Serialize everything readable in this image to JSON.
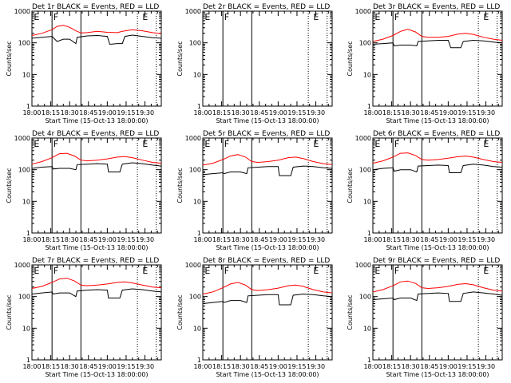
{
  "figure": {
    "common_xlabel": "Start Time (15-Oct-13 18:00:00)",
    "common_ylabel": "Counts/sec",
    "x_tick_labels": [
      "18:00",
      "18:15",
      "18:30",
      "18:45",
      "19:00",
      "19:15",
      "19:30"
    ],
    "y_tick_labels": [
      "1",
      "10",
      "100",
      "1000"
    ],
    "colors": {
      "events": "#000000",
      "lld": "#ff0000",
      "background": "#ffffff"
    }
  },
  "chart_data": [
    {
      "type": "line",
      "title": "Det 1r BLACK = Events, RED = LLD",
      "xlabel": "Start Time (15-Oct-13 18:00:00)",
      "ylabel": "Counts/sec",
      "x_unit": "minutes after 18:00:00",
      "xlim": [
        0,
        103
      ],
      "ylim": [
        1,
        1000
      ],
      "log_y": true,
      "markers": [
        {
          "label": "E",
          "x": 1.5
        },
        {
          "label": "F",
          "x": 17
        },
        {
          "label": "E",
          "x": 88
        }
      ],
      "vlines_solid": [
        16,
        39
      ],
      "vlines_dotted": [
        84,
        99
      ],
      "series": [
        {
          "name": "Events",
          "color": "#000000",
          "x": [
            0,
            8,
            16,
            20,
            25,
            30,
            35,
            36,
            44,
            52,
            60,
            62,
            68,
            72,
            74,
            80,
            88,
            96,
            103
          ],
          "y": [
            140,
            150,
            160,
            110,
            130,
            130,
            95,
            150,
            165,
            170,
            160,
            90,
            95,
            95,
            160,
            175,
            160,
            145,
            140
          ]
        },
        {
          "name": "LLD",
          "color": "#ff0000",
          "x": [
            0,
            8,
            16,
            20,
            25,
            30,
            35,
            39,
            44,
            52,
            60,
            68,
            72,
            80,
            88,
            96,
            103
          ],
          "y": [
            170,
            200,
            260,
            330,
            360,
            310,
            240,
            205,
            210,
            230,
            215,
            210,
            230,
            260,
            240,
            210,
            195
          ]
        }
      ]
    },
    {
      "type": "line",
      "title": "Det 2r BLACK = Events, RED = LLD",
      "xlabel": "Start Time (15-Oct-13 18:00:00)",
      "ylabel": "Counts/sec",
      "x_unit": "minutes after 18:00:00",
      "xlim": [
        0,
        103
      ],
      "ylim": [
        1,
        1000
      ],
      "log_y": true,
      "markers": [
        {
          "label": "E",
          "x": 1.5
        },
        {
          "label": "F",
          "x": 17
        },
        {
          "label": "E",
          "x": 88
        }
      ],
      "vlines_solid": [
        16,
        39
      ],
      "vlines_dotted": [
        84,
        99
      ],
      "series": []
    },
    {
      "type": "line",
      "title": "Det 3r BLACK = Events, RED = LLD",
      "xlabel": "Start Time (15-Oct-13 18:00:00)",
      "ylabel": "Counts/sec",
      "x_unit": "minutes after 18:00:00",
      "xlim": [
        0,
        103
      ],
      "ylim": [
        1,
        1000
      ],
      "log_y": true,
      "markers": [
        {
          "label": "E",
          "x": 1.5
        },
        {
          "label": "F",
          "x": 17
        },
        {
          "label": "E",
          "x": 88
        }
      ],
      "vlines_solid": [
        16,
        39
      ],
      "vlines_dotted": [
        84,
        99
      ],
      "series": [
        {
          "name": "Events",
          "color": "#000000",
          "x": [
            0,
            8,
            16,
            17,
            22,
            30,
            35,
            36,
            44,
            52,
            60,
            62,
            70,
            72,
            80,
            88,
            96,
            103
          ],
          "y": [
            90,
            95,
            100,
            80,
            85,
            85,
            80,
            110,
            115,
            120,
            120,
            70,
            70,
            110,
            120,
            115,
            105,
            100
          ]
        },
        {
          "name": "LLD",
          "color": "#ff0000",
          "x": [
            0,
            8,
            16,
            22,
            28,
            34,
            39,
            44,
            52,
            60,
            68,
            74,
            80,
            88,
            96,
            103
          ],
          "y": [
            110,
            130,
            170,
            230,
            270,
            220,
            160,
            150,
            150,
            160,
            190,
            200,
            185,
            150,
            130,
            120
          ]
        }
      ]
    },
    {
      "type": "line",
      "title": "Det 4r BLACK = Events, RED = LLD",
      "xlabel": "Start Time (15-Oct-13 18:00:00)",
      "ylabel": "Counts/sec",
      "x_unit": "minutes after 18:00:00",
      "xlim": [
        0,
        103
      ],
      "ylim": [
        1,
        1000
      ],
      "log_y": true,
      "markers": [
        {
          "label": "E",
          "x": 1.5
        },
        {
          "label": "F",
          "x": 17
        },
        {
          "label": "E",
          "x": 88
        }
      ],
      "vlines_solid": [
        16,
        39
      ],
      "vlines_dotted": [
        84,
        99
      ],
      "series": [
        {
          "name": "Events",
          "color": "#000000",
          "x": [
            0,
            8,
            16,
            17,
            22,
            30,
            35,
            36,
            44,
            52,
            60,
            61,
            70,
            72,
            80,
            88,
            96,
            103
          ],
          "y": [
            110,
            120,
            125,
            105,
            110,
            110,
            100,
            145,
            150,
            155,
            150,
            85,
            85,
            150,
            165,
            155,
            140,
            130
          ]
        },
        {
          "name": "LLD",
          "color": "#ff0000",
          "x": [
            0,
            8,
            16,
            22,
            28,
            34,
            39,
            44,
            52,
            60,
            68,
            74,
            80,
            88,
            96,
            103
          ],
          "y": [
            150,
            180,
            240,
            320,
            330,
            270,
            200,
            190,
            200,
            220,
            250,
            260,
            240,
            200,
            170,
            160
          ]
        }
      ]
    },
    {
      "type": "line",
      "title": "Det 5r BLACK = Events, RED = LLD",
      "xlabel": "Start Time (15-Oct-13 18:00:00)",
      "ylabel": "Counts/sec",
      "x_unit": "minutes after 18:00:00",
      "xlim": [
        0,
        103
      ],
      "ylim": [
        1,
        1000
      ],
      "log_y": true,
      "markers": [
        {
          "label": "E",
          "x": 1.5
        },
        {
          "label": "F",
          "x": 17
        },
        {
          "label": "E",
          "x": 88
        }
      ],
      "vlines_solid": [
        16,
        39
      ],
      "vlines_dotted": [
        84,
        99
      ],
      "series": [
        {
          "name": "Events",
          "color": "#000000",
          "x": [
            0,
            8,
            16,
            17,
            22,
            30,
            35,
            36,
            44,
            52,
            60,
            61,
            70,
            72,
            80,
            88,
            96,
            103
          ],
          "y": [
            70,
            75,
            80,
            75,
            85,
            85,
            75,
            115,
            120,
            125,
            125,
            65,
            65,
            120,
            130,
            125,
            115,
            110
          ]
        },
        {
          "name": "LLD",
          "color": "#ff0000",
          "x": [
            0,
            8,
            16,
            22,
            28,
            34,
            39,
            44,
            52,
            60,
            68,
            74,
            80,
            88,
            96,
            103
          ],
          "y": [
            140,
            160,
            210,
            270,
            300,
            250,
            180,
            170,
            180,
            200,
            240,
            250,
            225,
            180,
            155,
            145
          ]
        }
      ]
    },
    {
      "type": "line",
      "title": "Det 6r BLACK = Events, RED = LLD",
      "xlabel": "Start Time (15-Oct-13 18:00:00)",
      "ylabel": "Counts/sec",
      "x_unit": "minutes after 18:00:00",
      "xlim": [
        0,
        103
      ],
      "ylim": [
        1,
        1000
      ],
      "log_y": true,
      "markers": [
        {
          "label": "E",
          "x": 1.5
        },
        {
          "label": "F",
          "x": 17
        },
        {
          "label": "E",
          "x": 88
        }
      ],
      "vlines_solid": [
        16,
        39
      ],
      "vlines_dotted": [
        84,
        99
      ],
      "series": [
        {
          "name": "Events",
          "color": "#000000",
          "x": [
            0,
            8,
            16,
            17,
            22,
            30,
            35,
            36,
            44,
            52,
            60,
            61,
            70,
            72,
            80,
            88,
            96,
            103
          ],
          "y": [
            100,
            110,
            115,
            90,
            100,
            100,
            85,
            130,
            135,
            140,
            135,
            80,
            80,
            135,
            150,
            140,
            125,
            120
          ]
        },
        {
          "name": "LLD",
          "color": "#ff0000",
          "x": [
            0,
            8,
            16,
            22,
            28,
            34,
            39,
            44,
            52,
            60,
            68,
            74,
            80,
            88,
            96,
            103
          ],
          "y": [
            160,
            190,
            250,
            330,
            340,
            280,
            210,
            200,
            210,
            230,
            260,
            270,
            250,
            210,
            180,
            170
          ]
        }
      ]
    },
    {
      "type": "line",
      "title": "Det 7r BLACK = Events, RED = LLD",
      "xlabel": "Start Time (15-Oct-13 18:00:00)",
      "ylabel": "Counts/sec",
      "x_unit": "minutes after 18:00:00",
      "xlim": [
        0,
        103
      ],
      "ylim": [
        1,
        1000
      ],
      "log_y": true,
      "markers": [
        {
          "label": "E",
          "x": 1.5
        },
        {
          "label": "F",
          "x": 17
        },
        {
          "label": "E",
          "x": 88
        }
      ],
      "vlines_solid": [
        16,
        39
      ],
      "vlines_dotted": [
        84,
        99
      ],
      "series": [
        {
          "name": "Events",
          "color": "#000000",
          "x": [
            0,
            8,
            16,
            17,
            22,
            30,
            35,
            36,
            44,
            52,
            60,
            61,
            70,
            72,
            80,
            88,
            96,
            103
          ],
          "y": [
            120,
            130,
            140,
            120,
            130,
            130,
            100,
            150,
            160,
            165,
            160,
            90,
            90,
            160,
            175,
            165,
            150,
            140
          ]
        },
        {
          "name": "LLD",
          "color": "#ff0000",
          "x": [
            0,
            8,
            16,
            22,
            28,
            34,
            39,
            44,
            52,
            60,
            68,
            74,
            80,
            88,
            96,
            103
          ],
          "y": [
            180,
            210,
            280,
            360,
            380,
            310,
            230,
            220,
            230,
            250,
            280,
            290,
            270,
            230,
            200,
            190
          ]
        }
      ]
    },
    {
      "type": "line",
      "title": "Det 8r BLACK = Events, RED = LLD",
      "xlabel": "Start Time (15-Oct-13 18:00:00)",
      "ylabel": "Counts/sec",
      "x_unit": "minutes after 18:00:00",
      "xlim": [
        0,
        103
      ],
      "ylim": [
        1,
        1000
      ],
      "log_y": true,
      "markers": [
        {
          "label": "E",
          "x": 1.5
        },
        {
          "label": "F",
          "x": 17
        },
        {
          "label": "E",
          "x": 88
        }
      ],
      "vlines_solid": [
        16,
        39
      ],
      "vlines_dotted": [
        84,
        99
      ],
      "series": [
        {
          "name": "Events",
          "color": "#000000",
          "x": [
            0,
            8,
            16,
            17,
            22,
            30,
            35,
            36,
            44,
            52,
            60,
            61,
            70,
            72,
            80,
            88,
            96,
            103
          ],
          "y": [
            60,
            65,
            70,
            65,
            75,
            75,
            65,
            105,
            110,
            115,
            115,
            55,
            55,
            110,
            120,
            115,
            105,
            100
          ]
        },
        {
          "name": "LLD",
          "color": "#ff0000",
          "x": [
            0,
            8,
            16,
            22,
            28,
            34,
            39,
            44,
            52,
            60,
            68,
            74,
            80,
            88,
            96,
            103
          ],
          "y": [
            120,
            140,
            190,
            250,
            280,
            230,
            165,
            155,
            165,
            185,
            220,
            230,
            210,
            165,
            140,
            130
          ]
        }
      ]
    },
    {
      "type": "line",
      "title": "Det 9r BLACK = Events, RED = LLD",
      "xlabel": "Start Time (15-Oct-13 18:00:00)",
      "ylabel": "Counts/sec",
      "x_unit": "minutes after 18:00:00",
      "xlim": [
        0,
        103
      ],
      "ylim": [
        1,
        1000
      ],
      "log_y": true,
      "markers": [
        {
          "label": "E",
          "x": 1.5
        },
        {
          "label": "F",
          "x": 17
        },
        {
          "label": "E",
          "x": 88
        }
      ],
      "vlines_solid": [
        16,
        39
      ],
      "vlines_dotted": [
        84,
        99
      ],
      "series": [
        {
          "name": "Events",
          "color": "#000000",
          "x": [
            0,
            8,
            16,
            17,
            22,
            30,
            35,
            36,
            44,
            52,
            60,
            61,
            70,
            72,
            80,
            88,
            96,
            103
          ],
          "y": [
            80,
            85,
            90,
            80,
            90,
            90,
            75,
            120,
            125,
            130,
            125,
            70,
            70,
            125,
            140,
            130,
            120,
            110
          ]
        },
        {
          "name": "LLD",
          "color": "#ff0000",
          "x": [
            0,
            8,
            16,
            22,
            28,
            34,
            39,
            44,
            52,
            60,
            68,
            74,
            80,
            88,
            96,
            103
          ],
          "y": [
            140,
            165,
            220,
            290,
            310,
            260,
            190,
            180,
            190,
            210,
            245,
            255,
            235,
            190,
            160,
            150
          ]
        }
      ]
    }
  ]
}
